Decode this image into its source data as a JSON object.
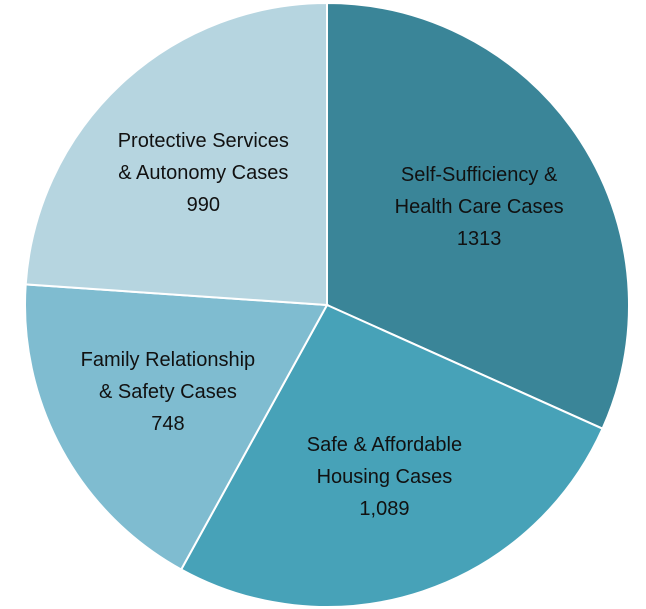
{
  "chart_data": {
    "type": "pie",
    "categories": [
      "Self-Sufficiency & Health Care Cases",
      "Safe & Affordable Housing Cases",
      "Family Relationship & Safety Cases",
      "Protective Services & Autonomy Cases"
    ],
    "values": [
      1313,
      1089,
      748,
      990
    ],
    "value_labels": [
      "1313",
      "1,089",
      "748",
      "990"
    ],
    "colors": [
      "#3a8598",
      "#47a2b8",
      "#7fbcd0",
      "#b6d5e0"
    ]
  }
}
